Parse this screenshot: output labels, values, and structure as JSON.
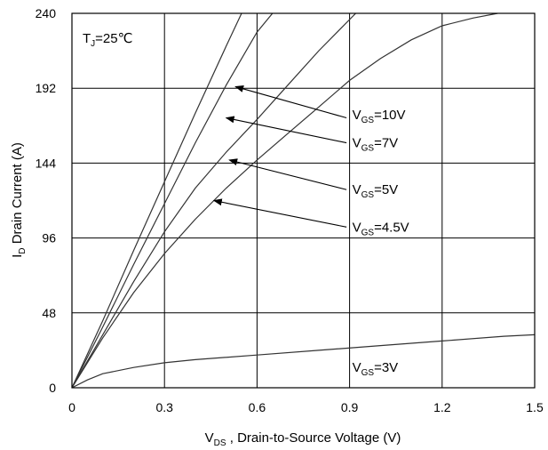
{
  "chart_data": {
    "type": "line",
    "xlabel": {
      "main": "V",
      "sub": "DS",
      "rest": " , Drain-to-Source Voltage  (V)"
    },
    "ylabel": {
      "main": "I",
      "sub": "D",
      "rest": " Drain Current (A)"
    },
    "xlim": [
      0,
      1.5
    ],
    "ylim": [
      0,
      240
    ],
    "x_ticks": [
      "0",
      "0.3",
      "0.6",
      "0.9",
      "1.2",
      "1.5"
    ],
    "y_ticks": [
      "0",
      "48",
      "96",
      "144",
      "192",
      "240"
    ],
    "grid": true,
    "note": {
      "main": "T",
      "sub": "J",
      "rest": "=25℃"
    },
    "series": [
      {
        "name": "VGS=10V",
        "label_main": "V",
        "label_sub": "GS",
        "label_rest": "=10V",
        "points": [
          [
            0,
            0
          ],
          [
            0.1,
            43
          ],
          [
            0.2,
            88
          ],
          [
            0.3,
            132
          ],
          [
            0.4,
            176
          ],
          [
            0.5,
            219
          ],
          [
            0.55,
            240
          ]
        ],
        "arrow_to": [
          0.53,
          193
        ]
      },
      {
        "name": "VGS=7V",
        "label_main": "V",
        "label_sub": "GS",
        "label_rest": "=7V",
        "points": [
          [
            0,
            0
          ],
          [
            0.1,
            39
          ],
          [
            0.2,
            79
          ],
          [
            0.3,
            118
          ],
          [
            0.4,
            157
          ],
          [
            0.5,
            194
          ],
          [
            0.6,
            228
          ],
          [
            0.65,
            240
          ]
        ],
        "arrow_to": [
          0.5,
          173
        ]
      },
      {
        "name": "VGS=5V",
        "label_main": "V",
        "label_sub": "GS",
        "label_rest": "=5V",
        "points": [
          [
            0,
            0
          ],
          [
            0.1,
            34
          ],
          [
            0.2,
            68
          ],
          [
            0.3,
            100
          ],
          [
            0.4,
            128
          ],
          [
            0.5,
            151
          ],
          [
            0.6,
            172
          ],
          [
            0.7,
            194
          ],
          [
            0.8,
            216
          ],
          [
            0.9,
            236
          ],
          [
            0.92,
            240
          ]
        ],
        "arrow_to": [
          0.51,
          146
        ]
      },
      {
        "name": "VGS=4.5V",
        "label_main": "V",
        "label_sub": "GS",
        "label_rest": "=4.5V",
        "points": [
          [
            0,
            0
          ],
          [
            0.1,
            32
          ],
          [
            0.2,
            61
          ],
          [
            0.3,
            86
          ],
          [
            0.4,
            108
          ],
          [
            0.5,
            128
          ],
          [
            0.6,
            146
          ],
          [
            0.7,
            163
          ],
          [
            0.8,
            180
          ],
          [
            0.9,
            197
          ],
          [
            1.0,
            211
          ],
          [
            1.1,
            223
          ],
          [
            1.2,
            232
          ],
          [
            1.3,
            237
          ],
          [
            1.38,
            240
          ]
        ],
        "arrow_to": [
          0.46,
          120
        ]
      },
      {
        "name": "VGS=3V",
        "label_main": "V",
        "label_sub": "GS",
        "label_rest": "=3V",
        "points": [
          [
            0,
            0
          ],
          [
            0.05,
            5
          ],
          [
            0.1,
            9
          ],
          [
            0.2,
            13
          ],
          [
            0.3,
            16
          ],
          [
            0.4,
            18
          ],
          [
            0.6,
            21
          ],
          [
            0.8,
            24
          ],
          [
            1.0,
            27
          ],
          [
            1.2,
            30
          ],
          [
            1.4,
            33
          ],
          [
            1.5,
            34
          ]
        ],
        "arrow_to": null
      }
    ],
    "label_anchors": [
      [
        0.9,
        175
      ],
      [
        0.9,
        157
      ],
      [
        0.9,
        127
      ],
      [
        0.9,
        103
      ],
      [
        0.9,
        13
      ]
    ],
    "arrow_from": [
      [
        0.89,
        173
      ],
      [
        0.89,
        157
      ],
      [
        0.89,
        127
      ],
      [
        0.89,
        103
      ]
    ]
  }
}
